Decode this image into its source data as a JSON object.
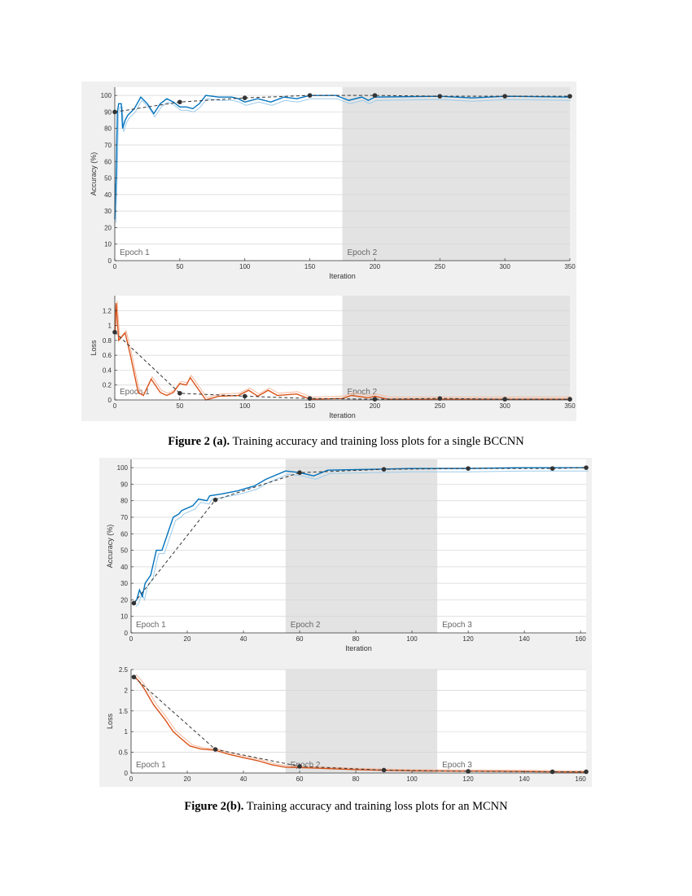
{
  "figures": [
    {
      "caption_label": "Figure 2 (a).",
      "caption_text": " Training accuracy and training loss plots for a single BCCNN"
    },
    {
      "caption_label": "Figure 2(b).",
      "caption_text": " Training accuracy and training loss plots for an MCNN"
    }
  ],
  "colors": {
    "accuracy_line": "#0072bd",
    "accuracy_raw": "#9ccbea",
    "loss_line": "#d95319",
    "loss_raw": "#f4b99e",
    "validation": "#333333",
    "epoch_shade": "#e3e3e3",
    "panel_bg": "#f0f0f0"
  },
  "chart_data": [
    {
      "id": "a-accuracy",
      "type": "line",
      "xlabel": "Iteration",
      "ylabel": "Accuracy (%)",
      "xlim": [
        0,
        350
      ],
      "ylim": [
        0,
        105
      ],
      "xticks": [
        0,
        50,
        100,
        150,
        200,
        250,
        300,
        350
      ],
      "yticks": [
        0,
        10,
        20,
        30,
        40,
        50,
        60,
        70,
        80,
        90,
        100
      ],
      "grid": true,
      "epochs": [
        {
          "label": "Epoch 1",
          "start": 0,
          "end": 175,
          "shaded": false
        },
        {
          "label": "Epoch 2",
          "start": 175,
          "end": 350,
          "shaded": true
        }
      ],
      "training": [
        [
          0,
          25
        ],
        [
          1,
          50
        ],
        [
          2,
          90
        ],
        [
          3,
          95
        ],
        [
          5,
          95
        ],
        [
          6,
          80
        ],
        [
          8,
          85
        ],
        [
          10,
          88
        ],
        [
          15,
          92
        ],
        [
          20,
          99
        ],
        [
          25,
          95
        ],
        [
          30,
          89
        ],
        [
          35,
          95
        ],
        [
          40,
          98
        ],
        [
          45,
          96
        ],
        [
          50,
          93
        ],
        [
          55,
          93
        ],
        [
          60,
          92
        ],
        [
          65,
          95
        ],
        [
          70,
          100
        ],
        [
          80,
          99
        ],
        [
          90,
          99
        ],
        [
          95,
          98
        ],
        [
          100,
          96
        ],
        [
          110,
          98
        ],
        [
          120,
          96
        ],
        [
          130,
          99
        ],
        [
          140,
          98
        ],
        [
          150,
          100
        ],
        [
          170,
          100
        ],
        [
          180,
          97
        ],
        [
          190,
          99
        ],
        [
          195,
          97
        ],
        [
          200,
          99
        ],
        [
          250,
          99.5
        ],
        [
          275,
          98.5
        ],
        [
          300,
          99.5
        ],
        [
          350,
          99
        ]
      ],
      "validation": [
        [
          0,
          90
        ],
        [
          50,
          96
        ],
        [
          100,
          98.5
        ],
        [
          150,
          100
        ],
        [
          200,
          100
        ],
        [
          250,
          99.5
        ],
        [
          300,
          99.5
        ],
        [
          350,
          99.5
        ]
      ]
    },
    {
      "id": "a-loss",
      "type": "line",
      "xlabel": "Iteration",
      "ylabel": "Loss",
      "xlim": [
        0,
        350
      ],
      "ylim": [
        0,
        1.4
      ],
      "xticks": [
        0,
        50,
        100,
        150,
        200,
        250,
        300,
        350
      ],
      "yticks": [
        0,
        0.2,
        0.4,
        0.6,
        0.8,
        1,
        1.2
      ],
      "grid": true,
      "epochs": [
        {
          "label": "Epoch 1",
          "start": 0,
          "end": 175,
          "shaded": false
        },
        {
          "label": "Epoch 2",
          "start": 175,
          "end": 350,
          "shaded": true
        }
      ],
      "training": [
        [
          0,
          0.9
        ],
        [
          1,
          1.3
        ],
        [
          3,
          0.8
        ],
        [
          8,
          0.9
        ],
        [
          12,
          0.6
        ],
        [
          18,
          0.1
        ],
        [
          22,
          0.06
        ],
        [
          28,
          0.28
        ],
        [
          35,
          0.1
        ],
        [
          40,
          0.06
        ],
        [
          45,
          0.1
        ],
        [
          50,
          0.22
        ],
        [
          55,
          0.2
        ],
        [
          58,
          0.3
        ],
        [
          62,
          0.2
        ],
        [
          70,
          0
        ],
        [
          80,
          0.05
        ],
        [
          95,
          0.06
        ],
        [
          103,
          0.13
        ],
        [
          110,
          0.05
        ],
        [
          118,
          0.13
        ],
        [
          125,
          0.06
        ],
        [
          140,
          0.08
        ],
        [
          150,
          0.01
        ],
        [
          175,
          0.02
        ],
        [
          182,
          0.06
        ],
        [
          195,
          0.03
        ],
        [
          200,
          0.05
        ],
        [
          210,
          0.01
        ],
        [
          350,
          0.01
        ]
      ],
      "validation": [
        [
          0,
          0.91
        ],
        [
          50,
          0.09
        ],
        [
          100,
          0.05
        ],
        [
          150,
          0.02
        ],
        [
          200,
          0.01
        ],
        [
          250,
          0.02
        ],
        [
          300,
          0.01
        ],
        [
          350,
          0.01
        ]
      ]
    },
    {
      "id": "b-accuracy",
      "type": "line",
      "xlabel": "Iteration",
      "ylabel": "Accuracy (%)",
      "xlim": [
        0,
        162
      ],
      "ylim": [
        0,
        105
      ],
      "xticks": [
        0,
        20,
        40,
        60,
        80,
        100,
        120,
        140,
        160
      ],
      "yticks": [
        0,
        10,
        20,
        30,
        40,
        50,
        60,
        70,
        80,
        90,
        100
      ],
      "grid": true,
      "epochs": [
        {
          "label": "Epoch 1",
          "start": 0,
          "end": 55,
          "shaded": false
        },
        {
          "label": "Epoch 2",
          "start": 55,
          "end": 109,
          "shaded": true
        },
        {
          "label": "Epoch 3",
          "start": 109,
          "end": 162,
          "shaded": false
        }
      ],
      "training": [
        [
          1,
          18
        ],
        [
          2,
          20
        ],
        [
          3,
          26
        ],
        [
          4,
          22
        ],
        [
          5,
          30
        ],
        [
          7,
          35
        ],
        [
          9,
          50
        ],
        [
          11,
          50
        ],
        [
          13,
          60
        ],
        [
          15,
          70
        ],
        [
          17,
          72
        ],
        [
          18,
          74
        ],
        [
          22,
          77
        ],
        [
          24,
          81
        ],
        [
          27,
          80
        ],
        [
          28,
          83
        ],
        [
          32,
          84
        ],
        [
          38,
          86
        ],
        [
          44,
          89
        ],
        [
          48,
          93
        ],
        [
          55,
          98
        ],
        [
          60,
          97
        ],
        [
          65,
          95
        ],
        [
          70,
          98.5
        ],
        [
          85,
          99
        ],
        [
          100,
          99.5
        ],
        [
          120,
          99.5
        ],
        [
          140,
          100
        ],
        [
          162,
          100
        ]
      ],
      "validation": [
        [
          1,
          18
        ],
        [
          30,
          80.5
        ],
        [
          60,
          97
        ],
        [
          90,
          99
        ],
        [
          120,
          99.5
        ],
        [
          150,
          99.5
        ],
        [
          162,
          100
        ]
      ]
    },
    {
      "id": "b-loss",
      "type": "line",
      "xlabel": "",
      "ylabel": "Loss",
      "xlim": [
        0,
        162
      ],
      "ylim": [
        0,
        2.5
      ],
      "xticks": [
        0,
        20,
        40,
        60,
        80,
        100,
        120,
        140,
        160
      ],
      "yticks": [
        0,
        0.5,
        1,
        1.5,
        2,
        2.5
      ],
      "grid": true,
      "epochs": [
        {
          "label": "Epoch 1",
          "start": 0,
          "end": 55,
          "shaded": false
        },
        {
          "label": "Epoch 2",
          "start": 55,
          "end": 109,
          "shaded": true
        },
        {
          "label": "Epoch 3",
          "start": 109,
          "end": 162,
          "shaded": false
        }
      ],
      "training": [
        [
          1,
          2.35
        ],
        [
          3,
          2.2
        ],
        [
          5,
          2.0
        ],
        [
          8,
          1.65
        ],
        [
          12,
          1.3
        ],
        [
          15,
          1.0
        ],
        [
          18,
          0.82
        ],
        [
          21,
          0.65
        ],
        [
          25,
          0.58
        ],
        [
          30,
          0.55
        ],
        [
          35,
          0.45
        ],
        [
          40,
          0.37
        ],
        [
          45,
          0.3
        ],
        [
          50,
          0.2
        ],
        [
          55,
          0.14
        ],
        [
          65,
          0.12
        ],
        [
          80,
          0.08
        ],
        [
          100,
          0.05
        ],
        [
          130,
          0.04
        ],
        [
          162,
          0.02
        ]
      ],
      "validation": [
        [
          1,
          2.32
        ],
        [
          30,
          0.57
        ],
        [
          60,
          0.16
        ],
        [
          90,
          0.07
        ],
        [
          120,
          0.04
        ],
        [
          150,
          0.03
        ],
        [
          162,
          0.03
        ]
      ]
    }
  ]
}
